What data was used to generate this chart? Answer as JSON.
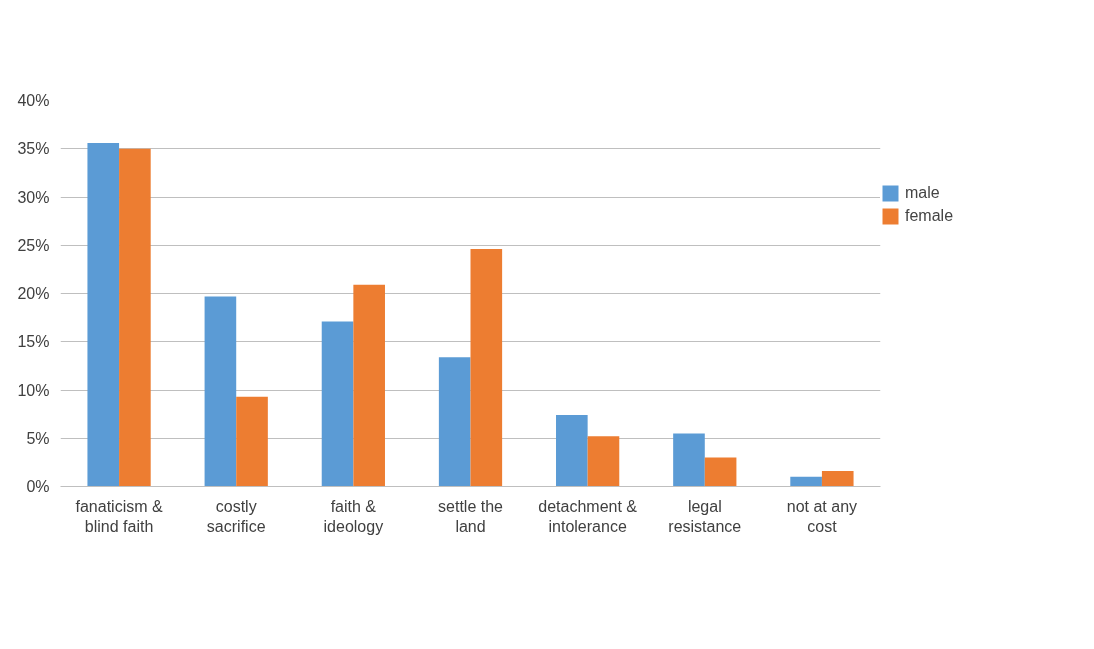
{
  "chart_data": {
    "type": "bar",
    "categories": [
      "fanaticism & blind faith",
      "costly sacrifice",
      "faith & ideology",
      "settle the land",
      "detachment & intolerance",
      "legal resistance",
      "not at any cost"
    ],
    "series": [
      {
        "name": "male",
        "color": "#5b9bd5",
        "values": [
          35.6,
          19.7,
          17.1,
          13.4,
          7.4,
          5.5,
          1.0
        ]
      },
      {
        "name": "female",
        "color": "#ed7d31",
        "values": [
          35.0,
          9.3,
          20.9,
          24.6,
          5.2,
          3.0,
          1.6
        ]
      }
    ],
    "ylim": [
      0,
      40
    ],
    "yticks": [
      {
        "value": 0,
        "label": "0%"
      },
      {
        "value": 5,
        "label": "5%"
      },
      {
        "value": 10,
        "label": "10%"
      },
      {
        "value": 15,
        "label": "15%"
      },
      {
        "value": 20,
        "label": "20%"
      },
      {
        "value": 25,
        "label": "25%"
      },
      {
        "value": 30,
        "label": "30%"
      },
      {
        "value": 35,
        "label": "35%"
      },
      {
        "value": 40,
        "label": "40%"
      }
    ],
    "grid": "y",
    "legend": "right"
  }
}
